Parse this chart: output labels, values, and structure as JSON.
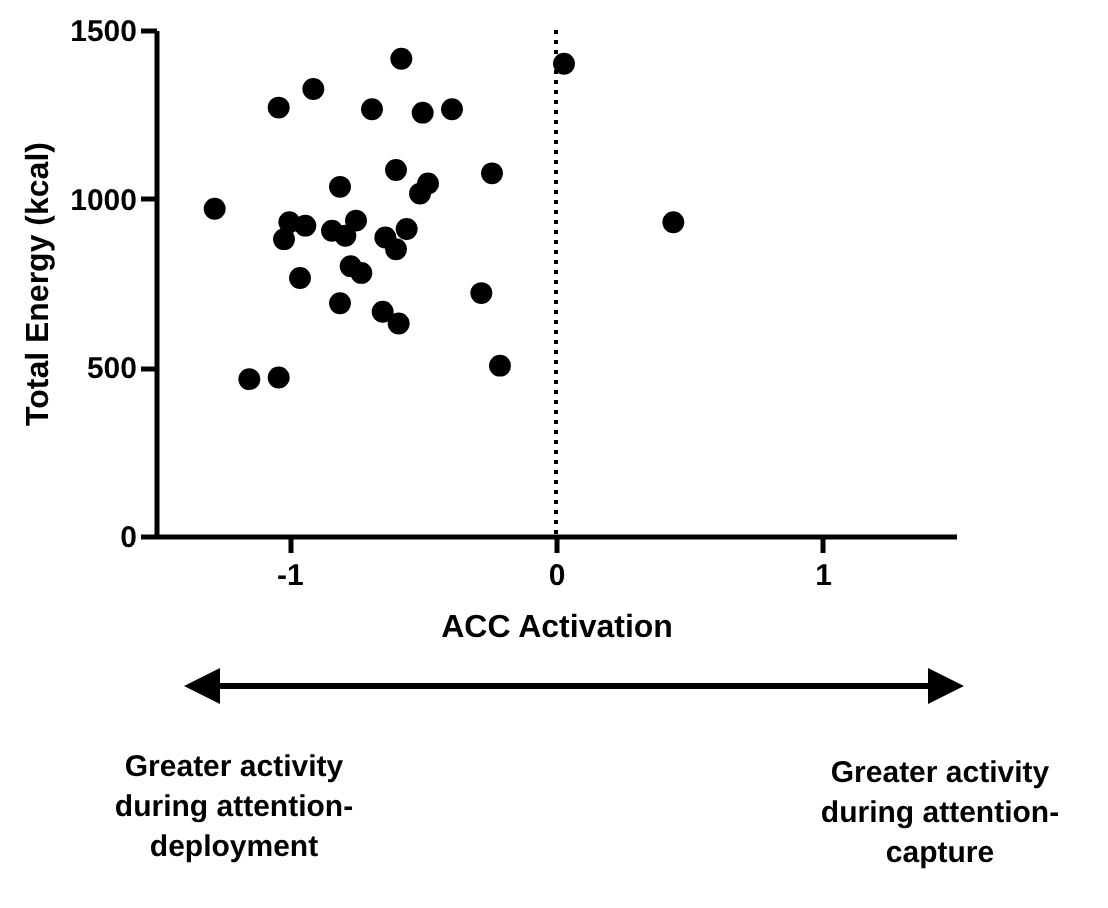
{
  "chart_data": {
    "type": "scatter",
    "xlabel": "ACC Activation",
    "ylabel": "Total Energy (kcal)",
    "xlim": [
      -1.5,
      1.5
    ],
    "xticks": [
      -1,
      0,
      1
    ],
    "ylim": [
      0,
      1500
    ],
    "yticks": [
      0,
      500,
      1000,
      1500
    ],
    "grid": false,
    "marker": "circle",
    "series": [
      {
        "color": "#000000",
        "x": [
          -1.28,
          -1.15,
          -1.04,
          -1.04,
          -0.91,
          -0.58,
          -0.69,
          -0.5,
          -0.39,
          -0.81,
          -0.6,
          -0.48,
          -0.51,
          -0.24,
          -1.0,
          -0.94,
          -1.02,
          -0.84,
          -0.79,
          -0.75,
          -0.64,
          -0.56,
          -0.6,
          -0.96,
          -0.77,
          -0.73,
          -0.81,
          -0.65,
          -0.59,
          -0.28,
          -0.21,
          0.03,
          0.44
        ],
        "values": [
          970,
          465,
          470,
          1270,
          1325,
          1415,
          1265,
          1255,
          1265,
          1035,
          1085,
          1045,
          1015,
          1075,
          930,
          920,
          880,
          905,
          890,
          935,
          885,
          910,
          850,
          765,
          800,
          780,
          690,
          665,
          630,
          720,
          505,
          1400,
          930
        ]
      }
    ],
    "ref_lines": [
      {
        "axis": "x",
        "value": 0,
        "line_style": "dotted",
        "color": "#000000"
      }
    ],
    "annotations": [
      "Greater activity during attention-deployment",
      "Greater activity during attention-capture"
    ]
  }
}
